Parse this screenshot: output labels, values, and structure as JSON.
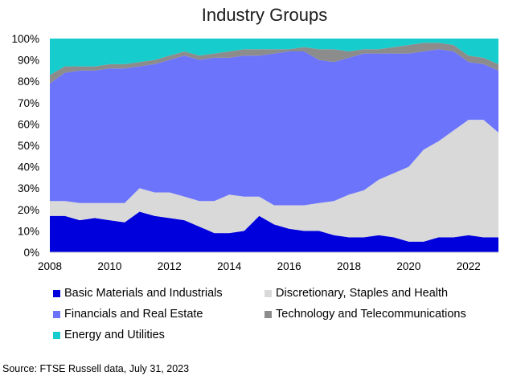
{
  "source": "Source: FTSE Russell data, July 31, 2023",
  "chart_data": {
    "type": "area",
    "stacked": true,
    "title": "Industry Groups",
    "xlabel": "",
    "ylabel": "",
    "xlim": [
      2008,
      2023
    ],
    "ylim": [
      0,
      100
    ],
    "x_ticks": [
      "2008",
      "2010",
      "2012",
      "2014",
      "2016",
      "2018",
      "2020",
      "2022"
    ],
    "y_ticks": [
      "0%",
      "10%",
      "20%",
      "30%",
      "40%",
      "50%",
      "60%",
      "70%",
      "80%",
      "90%",
      "100%"
    ],
    "legend_position": "bottom",
    "grid": false,
    "x": [
      2008.0,
      2008.5,
      2009.0,
      2009.5,
      2010.0,
      2010.5,
      2011.0,
      2011.5,
      2012.0,
      2012.5,
      2013.0,
      2013.5,
      2014.0,
      2014.5,
      2015.0,
      2015.5,
      2016.0,
      2016.5,
      2017.0,
      2017.5,
      2018.0,
      2018.5,
      2019.0,
      2019.5,
      2020.0,
      2020.5,
      2021.0,
      2021.5,
      2022.0,
      2022.5,
      2023.0
    ],
    "series": [
      {
        "name": "Basic Materials and Industrials",
        "color": "#0000dd",
        "values": [
          17,
          17,
          15,
          16,
          15,
          14,
          19,
          17,
          16,
          15,
          12,
          9,
          9,
          10,
          17,
          13,
          11,
          10,
          10,
          8,
          7,
          7,
          8,
          7,
          5,
          5,
          7,
          7,
          8,
          7,
          7
        ]
      },
      {
        "name": "Discretionary, Staples and Health",
        "color": "#d9d9d9",
        "values": [
          7,
          7,
          8,
          7,
          8,
          9,
          11,
          11,
          12,
          11,
          12,
          15,
          18,
          16,
          9,
          9,
          11,
          12,
          13,
          16,
          20,
          22,
          26,
          30,
          35,
          43,
          45,
          50,
          54,
          55,
          49
        ]
      },
      {
        "name": "Financials and Real Estate",
        "color": "#6b74fb",
        "values": [
          55,
          60,
          62,
          62,
          63,
          63,
          57,
          60,
          62,
          66,
          66,
          67,
          64,
          66,
          66,
          71,
          72,
          72,
          67,
          65,
          64,
          64,
          59,
          56,
          53,
          46,
          43,
          37,
          27,
          26,
          29
        ]
      },
      {
        "name": "Technology and Telecommunications",
        "color": "#8c8c8c",
        "values": [
          4,
          3,
          2,
          2,
          2,
          2,
          2,
          2,
          2,
          2,
          2,
          2,
          3,
          3,
          3,
          2,
          1,
          2,
          5,
          6,
          3,
          2,
          2,
          3,
          4,
          4,
          3,
          3,
          3,
          3,
          3
        ]
      },
      {
        "name": "Energy and Utilities",
        "color": "#17cccc",
        "values": [
          17,
          13,
          13,
          13,
          12,
          12,
          11,
          10,
          8,
          6,
          8,
          7,
          6,
          5,
          5,
          5,
          5,
          4,
          5,
          5,
          6,
          5,
          5,
          4,
          3,
          2,
          2,
          3,
          8,
          9,
          12
        ]
      }
    ]
  }
}
